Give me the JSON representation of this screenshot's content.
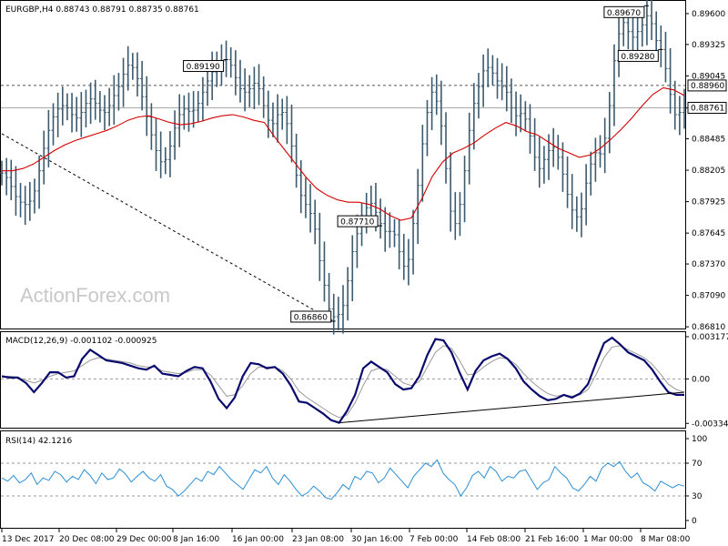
{
  "chart_data": {
    "type": "line",
    "header": "EURGBP,H4  0.88743 0.88791 0.88735 0.88761",
    "watermark": "ActionForex.com",
    "x_labels": [
      "13 Dec 2017",
      "20 Dec 08:00",
      "29 Dec 00:00",
      "8 Jan 16:00",
      "16 Jan 00:00",
      "23 Jan 08:00",
      "30 Jan 16:00",
      "7 Feb 00:00",
      "14 Feb 08:00",
      "21 Feb 16:00",
      "1 Mar 00:00",
      "8 Mar 08:00"
    ],
    "price_panel": {
      "ylim": [
        0.86795,
        0.89705
      ],
      "ticks": [
        "0.89600",
        "0.89325",
        "0.89045",
        "0.88760",
        "0.88485",
        "0.88205",
        "0.87925",
        "0.87645",
        "0.87370",
        "0.87090",
        "0.86810"
      ],
      "current_label": "0.88761",
      "level_label": "0.88960",
      "price_series": [
        0.8818,
        0.8814,
        0.8806,
        0.8797,
        0.8792,
        0.879,
        0.8793,
        0.8802,
        0.882,
        0.884,
        0.8856,
        0.8868,
        0.8875,
        0.8878,
        0.8876,
        0.887,
        0.8867,
        0.8872,
        0.888,
        0.8884,
        0.888,
        0.8874,
        0.8872,
        0.8878,
        0.8887,
        0.8895,
        0.8906,
        0.8914,
        0.8912,
        0.8902,
        0.8886,
        0.8868,
        0.8852,
        0.8838,
        0.8828,
        0.883,
        0.8842,
        0.8858,
        0.887,
        0.8875,
        0.8873,
        0.8874,
        0.888,
        0.889,
        0.89,
        0.8908,
        0.8914,
        0.8918,
        0.8919,
        0.8914,
        0.8903,
        0.8893,
        0.889,
        0.8893,
        0.8898,
        0.8893,
        0.8878,
        0.8865,
        0.8862,
        0.887,
        0.8872,
        0.8862,
        0.8842,
        0.8816,
        0.8798,
        0.879,
        0.8782,
        0.8768,
        0.874,
        0.8718,
        0.8697,
        0.869,
        0.8692,
        0.87,
        0.8722,
        0.8748,
        0.8764,
        0.878,
        0.8787,
        0.8791,
        0.8783,
        0.8773,
        0.8766,
        0.8766,
        0.8763,
        0.8748,
        0.8735,
        0.8741,
        0.8773,
        0.8807,
        0.8844,
        0.8872,
        0.889,
        0.8882,
        0.886,
        0.8822,
        0.8784,
        0.8773,
        0.879,
        0.882,
        0.8856,
        0.888,
        0.8895,
        0.8909,
        0.8912,
        0.8907,
        0.89,
        0.8895,
        0.889,
        0.8876,
        0.8869,
        0.8871,
        0.8866,
        0.8851,
        0.8832,
        0.8822,
        0.883,
        0.8838,
        0.8841,
        0.8832,
        0.8817,
        0.8799,
        0.8785,
        0.8779,
        0.8786,
        0.8809,
        0.8826,
        0.8836,
        0.8835,
        0.8849,
        0.8878,
        0.8918,
        0.8942,
        0.8952,
        0.8944,
        0.8939,
        0.8944,
        0.895,
        0.8958,
        0.8951,
        0.8936,
        0.8928,
        0.8911,
        0.8888,
        0.887,
        0.8872,
        0.8876
      ],
      "ma_series": [
        0.882,
        0.882,
        0.8822,
        0.8826,
        0.8832,
        0.8838,
        0.8843,
        0.8847,
        0.885,
        0.8853,
        0.8856,
        0.886,
        0.8865,
        0.8868,
        0.8869,
        0.8866,
        0.8863,
        0.8861,
        0.8862,
        0.8864,
        0.8867,
        0.8869,
        0.887,
        0.8868,
        0.8865,
        0.8863,
        0.885,
        0.8838,
        0.8826,
        0.8814,
        0.8804,
        0.8798,
        0.8794,
        0.8792,
        0.8792,
        0.879,
        0.8786,
        0.878,
        0.8776,
        0.8778,
        0.8795,
        0.8815,
        0.8828,
        0.8836,
        0.884,
        0.8845,
        0.8852,
        0.8858,
        0.8863,
        0.886,
        0.8855,
        0.8852,
        0.8846,
        0.884,
        0.8836,
        0.8832,
        0.8834,
        0.884,
        0.8848,
        0.8857,
        0.8867,
        0.8878,
        0.8888,
        0.8894,
        0.8892,
        0.8887
      ],
      "annotations": [
        {
          "label": "0.89280",
          "value": 0.8928
        },
        {
          "label": "0.89190",
          "value": 0.8919
        },
        {
          "label": "0.89670",
          "value": 0.8967
        },
        {
          "label": "0.86860",
          "value": 0.8686
        },
        {
          "label": "0.87710",
          "value": 0.8771
        }
      ],
      "trendline": [
        0.8853,
        0.8686
      ],
      "colors": {
        "price": "#3c5a6e",
        "ma": "#d40000",
        "level_line": "#555555",
        "current_line": "#aaaaaa"
      }
    },
    "macd_panel": {
      "label": "MACD(12,26,9) -0.001102 -0.000925",
      "ylim": [
        -0.0036,
        0.00345
      ],
      "ticks": [
        "0.003177",
        "0.00",
        "-0.003344"
      ],
      "macd": [
        0.0002,
        0.0001,
        0.0001,
        -0.0003,
        -0.001,
        -0.0003,
        0.0005,
        0.0005,
        0.0001,
        0.0002,
        0.0015,
        0.0022,
        0.0018,
        0.0014,
        0.0013,
        0.0012,
        0.001,
        0.0008,
        0.0007,
        0.001,
        0.0004,
        0.0003,
        0.0002,
        0.0006,
        0.0009,
        0.0008,
        -0.0002,
        -0.0015,
        -0.0022,
        -0.0014,
        0.0002,
        0.0012,
        0.0011,
        0.0008,
        0.0009,
        0.0004,
        -0.0005,
        -0.0017,
        -0.0018,
        -0.0022,
        -0.0026,
        -0.0031,
        -0.0033,
        -0.0024,
        -0.0012,
        0.0008,
        0.0013,
        0.0009,
        0.0005,
        -0.0004,
        -0.0008,
        -0.0007,
        0.0002,
        0.0018,
        0.003,
        0.0029,
        0.002,
        0.0005,
        -0.0008,
        0.0006,
        0.0014,
        0.0017,
        0.0019,
        0.0015,
        0.0008,
        -0.0002,
        -0.0008,
        -0.0013,
        -0.0016,
        -0.0015,
        -0.0012,
        -0.0014,
        -0.0011,
        -0.0004,
        0.0012,
        0.0027,
        0.0031,
        0.0026,
        0.002,
        0.0017,
        0.0014,
        0.0007,
        -0.0002,
        -0.001,
        -0.0012,
        -0.0012
      ],
      "signal": [
        0.0002,
        0.0002,
        0.0001,
        -0.0001,
        -0.0003,
        -0.0001,
        0.0002,
        0.0004,
        0.0005,
        0.0006,
        0.001,
        0.0014,
        0.0016,
        0.0015,
        0.0014,
        0.0013,
        0.0012,
        0.001,
        0.0009,
        0.0009,
        0.0006,
        0.0005,
        0.0004,
        0.0005,
        0.0007,
        0.0007,
        0.0003,
        -0.0005,
        -0.0013,
        -0.0012,
        -0.0005,
        0.0004,
        0.0009,
        0.0009,
        0.0009,
        0.0006,
        0.0,
        -0.0009,
        -0.0014,
        -0.0018,
        -0.0022,
        -0.0026,
        -0.0029,
        -0.0027,
        -0.0018,
        -0.0005,
        0.0006,
        0.0008,
        0.0007,
        0.0002,
        -0.0003,
        -0.0005,
        -0.0002,
        0.0009,
        0.002,
        0.0025,
        0.0023,
        0.0014,
        0.0003,
        0.0004,
        0.0009,
        0.0013,
        0.0016,
        0.0015,
        0.0011,
        0.0004,
        -0.0002,
        -0.0007,
        -0.0011,
        -0.0013,
        -0.0012,
        -0.0013,
        -0.0012,
        -0.0008,
        0.0003,
        0.0016,
        0.0024,
        0.0025,
        0.0022,
        0.0019,
        0.0016,
        0.0011,
        0.0004,
        -0.0004,
        -0.0008,
        -0.001
      ],
      "trendline": [
        -0.0033,
        -0.001
      ],
      "colors": {
        "macd": "#0a0a6e",
        "signal": "#9a9a9a",
        "trend": "#000000"
      }
    },
    "rsi_panel": {
      "label": "RSI(14) 42.1216",
      "ylim": [
        0,
        100
      ],
      "ticks": [
        "100",
        "70",
        "30",
        "0"
      ],
      "rsi": [
        52,
        48,
        55,
        46,
        50,
        58,
        44,
        52,
        49,
        60,
        56,
        47,
        54,
        50,
        62,
        55,
        45,
        58,
        50,
        52,
        63,
        57,
        47,
        54,
        60,
        52,
        48,
        56,
        42,
        38,
        30,
        36,
        44,
        52,
        48,
        60,
        56,
        66,
        58,
        50,
        44,
        38,
        50,
        62,
        58,
        66,
        52,
        44,
        56,
        48,
        38,
        30,
        34,
        42,
        36,
        28,
        26,
        34,
        44,
        38,
        54,
        50,
        60,
        58,
        46,
        52,
        64,
        56,
        48,
        40,
        54,
        62,
        70,
        66,
        74,
        58,
        50,
        44,
        30,
        40,
        55,
        60,
        52,
        66,
        60,
        48,
        54,
        52,
        60,
        62,
        50,
        38,
        46,
        50,
        66,
        58,
        52,
        40,
        36,
        44,
        54,
        48,
        64,
        70,
        66,
        72,
        60,
        52,
        58,
        46,
        42,
        36,
        48,
        44,
        40,
        44,
        42
      ],
      "colors": {
        "rsi": "#2a8fd6",
        "level": "#999999"
      }
    }
  }
}
